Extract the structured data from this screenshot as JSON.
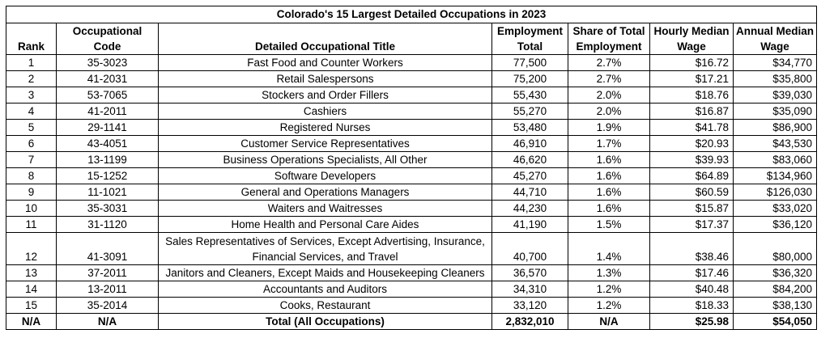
{
  "title": "Colorado's 15 Largest Detailed Occupations in 2023",
  "columns": [
    "Rank",
    "Occupational Code",
    "Detailed Occupational Title",
    "Employment Total",
    "Share of Total Employment",
    "Hourly Median Wage",
    "Annual Median Wage"
  ],
  "rows": [
    [
      "1",
      "35-3023",
      "Fast Food and Counter Workers",
      "77,500",
      "2.7%",
      "$16.72",
      "$34,770"
    ],
    [
      "2",
      "41-2031",
      "Retail Salespersons",
      "75,200",
      "2.7%",
      "$17.21",
      "$35,800"
    ],
    [
      "3",
      "53-7065",
      "Stockers and Order Fillers",
      "55,430",
      "2.0%",
      "$18.76",
      "$39,030"
    ],
    [
      "4",
      "41-2011",
      "Cashiers",
      "55,270",
      "2.0%",
      "$16.87",
      "$35,090"
    ],
    [
      "5",
      "29-1141",
      "Registered Nurses",
      "53,480",
      "1.9%",
      "$41.78",
      "$86,900"
    ],
    [
      "6",
      "43-4051",
      "Customer Service Representatives",
      "46,910",
      "1.7%",
      "$20.93",
      "$43,530"
    ],
    [
      "7",
      "13-1199",
      "Business Operations Specialists, All Other",
      "46,620",
      "1.6%",
      "$39.93",
      "$83,060"
    ],
    [
      "8",
      "15-1252",
      "Software Developers",
      "45,270",
      "1.6%",
      "$64.89",
      "$134,960"
    ],
    [
      "9",
      "11-1021",
      "General and Operations Managers",
      "44,710",
      "1.6%",
      "$60.59",
      "$126,030"
    ],
    [
      "10",
      "35-3031",
      "Waiters and Waitresses",
      "44,230",
      "1.6%",
      "$15.87",
      "$33,020"
    ],
    [
      "11",
      "31-1120",
      "Home Health and Personal Care Aides",
      "41,190",
      "1.5%",
      "$17.37",
      "$36,120"
    ],
    [
      "12",
      "41-3091",
      "Sales Representatives of Services, Except Advertising, Insurance, Financial Services, and Travel",
      "40,700",
      "1.4%",
      "$38.46",
      "$80,000"
    ],
    [
      "13",
      "37-2011",
      "Janitors and Cleaners, Except Maids and Housekeeping Cleaners",
      "36,570",
      "1.3%",
      "$17.46",
      "$36,320"
    ],
    [
      "14",
      "13-2011",
      "Accountants and Auditors",
      "34,310",
      "1.2%",
      "$40.48",
      "$84,200"
    ],
    [
      "15",
      "35-2014",
      "Cooks, Restaurant",
      "33,120",
      "1.2%",
      "$18.33",
      "$38,130"
    ]
  ],
  "total": [
    "N/A",
    "N/A",
    "Total (All Occupations)",
    "2,832,010",
    "N/A",
    "$25.98",
    "$54,050"
  ]
}
